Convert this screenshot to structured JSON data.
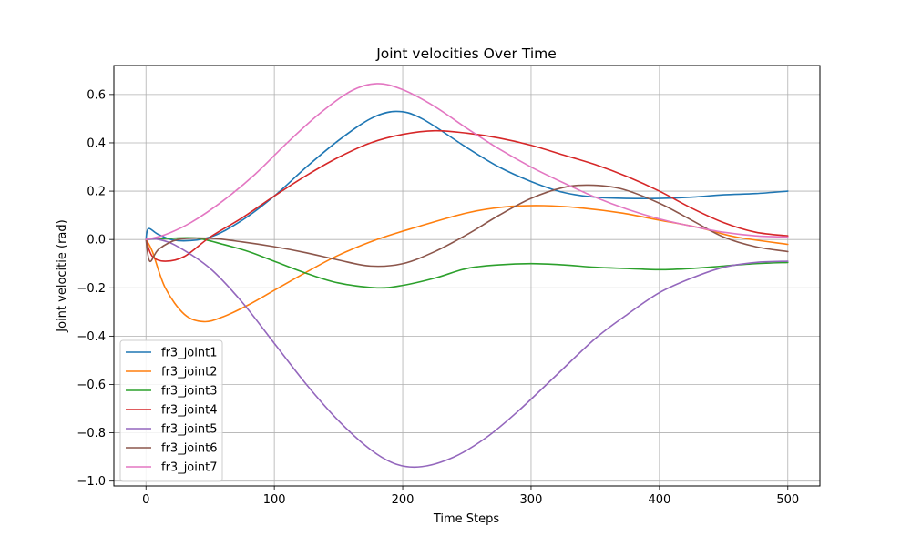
{
  "chart_data": {
    "type": "line",
    "title": "Joint velocities Over Time",
    "xlabel": "Time Steps",
    "ylabel": "Joint velocitie (rad)",
    "xlim": [
      -25,
      525
    ],
    "ylim": [
      -1.02,
      0.72
    ],
    "xticks": [
      0,
      100,
      200,
      300,
      400,
      500
    ],
    "xtick_labels": [
      "0",
      "100",
      "200",
      "300",
      "400",
      "500"
    ],
    "yticks": [
      -1.0,
      -0.8,
      -0.6,
      -0.4,
      -0.2,
      0.0,
      0.2,
      0.4,
      0.6
    ],
    "ytick_labels": [
      "−1.0",
      "−0.8",
      "−0.6",
      "−0.4",
      "−0.2",
      "0.0",
      "0.2",
      "0.4",
      "0.6"
    ],
    "grid": true,
    "legend_position": "lower-left",
    "series": [
      {
        "name": "fr3_joint1",
        "color": "#1f77b4",
        "x": [
          0,
          2,
          10,
          25,
          50,
          75,
          100,
          125,
          150,
          175,
          195,
          215,
          250,
          275,
          300,
          325,
          350,
          375,
          400,
          425,
          450,
          475,
          500
        ],
        "y": [
          0.0,
          0.045,
          0.02,
          -0.005,
          0.01,
          0.08,
          0.18,
          0.3,
          0.41,
          0.5,
          0.53,
          0.5,
          0.38,
          0.3,
          0.24,
          0.195,
          0.175,
          0.17,
          0.17,
          0.175,
          0.185,
          0.19,
          0.2
        ]
      },
      {
        "name": "fr3_joint2",
        "color": "#ff7f0e",
        "x": [
          0,
          5,
          15,
          30,
          45,
          60,
          80,
          100,
          125,
          150,
          180,
          210,
          250,
          280,
          310,
          340,
          370,
          400,
          430,
          460,
          500
        ],
        "y": [
          0.0,
          -0.05,
          -0.2,
          -0.31,
          -0.34,
          -0.32,
          -0.27,
          -0.21,
          -0.135,
          -0.065,
          0.0,
          0.05,
          0.11,
          0.135,
          0.14,
          0.13,
          0.11,
          0.08,
          0.05,
          0.01,
          -0.02
        ]
      },
      {
        "name": "fr3_joint3",
        "color": "#2ca02c",
        "x": [
          0,
          20,
          40,
          60,
          80,
          100,
          125,
          150,
          180,
          200,
          225,
          250,
          275,
          300,
          325,
          350,
          375,
          400,
          425,
          450,
          475,
          500
        ],
        "y": [
          0.0,
          0.005,
          0.005,
          -0.02,
          -0.05,
          -0.09,
          -0.14,
          -0.18,
          -0.2,
          -0.19,
          -0.16,
          -0.12,
          -0.105,
          -0.1,
          -0.105,
          -0.115,
          -0.12,
          -0.125,
          -0.12,
          -0.11,
          -0.1,
          -0.095
        ]
      },
      {
        "name": "fr3_joint4",
        "color": "#d62728",
        "x": [
          0,
          5,
          15,
          30,
          50,
          75,
          100,
          125,
          150,
          175,
          200,
          225,
          250,
          275,
          300,
          325,
          350,
          375,
          400,
          425,
          450,
          475,
          500
        ],
        "y": [
          0.0,
          -0.07,
          -0.09,
          -0.07,
          0.01,
          0.09,
          0.18,
          0.265,
          0.34,
          0.4,
          0.435,
          0.45,
          0.44,
          0.42,
          0.39,
          0.35,
          0.31,
          0.26,
          0.2,
          0.13,
          0.07,
          0.03,
          0.015
        ]
      },
      {
        "name": "fr3_joint5",
        "color": "#9467bd",
        "x": [
          0,
          10,
          25,
          50,
          75,
          100,
          125,
          150,
          175,
          195,
          215,
          240,
          265,
          290,
          320,
          350,
          375,
          400,
          425,
          450,
          475,
          500
        ],
        "y": [
          0.0,
          0.0,
          -0.03,
          -0.12,
          -0.26,
          -0.43,
          -0.6,
          -0.75,
          -0.87,
          -0.93,
          -0.94,
          -0.9,
          -0.82,
          -0.71,
          -0.56,
          -0.41,
          -0.31,
          -0.22,
          -0.16,
          -0.115,
          -0.095,
          -0.09
        ]
      },
      {
        "name": "fr3_joint6",
        "color": "#8c564b",
        "x": [
          0,
          3,
          10,
          25,
          50,
          75,
          100,
          125,
          150,
          175,
          200,
          225,
          250,
          275,
          300,
          325,
          345,
          370,
          400,
          425,
          450,
          475,
          500
        ],
        "y": [
          0.0,
          -0.09,
          -0.04,
          0.0,
          0.005,
          -0.01,
          -0.03,
          -0.055,
          -0.085,
          -0.11,
          -0.1,
          -0.05,
          0.02,
          0.1,
          0.17,
          0.215,
          0.225,
          0.21,
          0.15,
          0.08,
          0.01,
          -0.03,
          -0.05
        ]
      },
      {
        "name": "fr3_joint7",
        "color": "#e377c2",
        "x": [
          0,
          15,
          35,
          60,
          85,
          110,
          135,
          160,
          180,
          200,
          225,
          250,
          275,
          300,
          325,
          350,
          375,
          400,
          425,
          450,
          475,
          500
        ],
        "y": [
          0.0,
          0.02,
          0.07,
          0.16,
          0.27,
          0.4,
          0.52,
          0.615,
          0.645,
          0.62,
          0.55,
          0.46,
          0.375,
          0.3,
          0.235,
          0.175,
          0.125,
          0.085,
          0.055,
          0.03,
          0.015,
          0.01
        ]
      }
    ]
  }
}
